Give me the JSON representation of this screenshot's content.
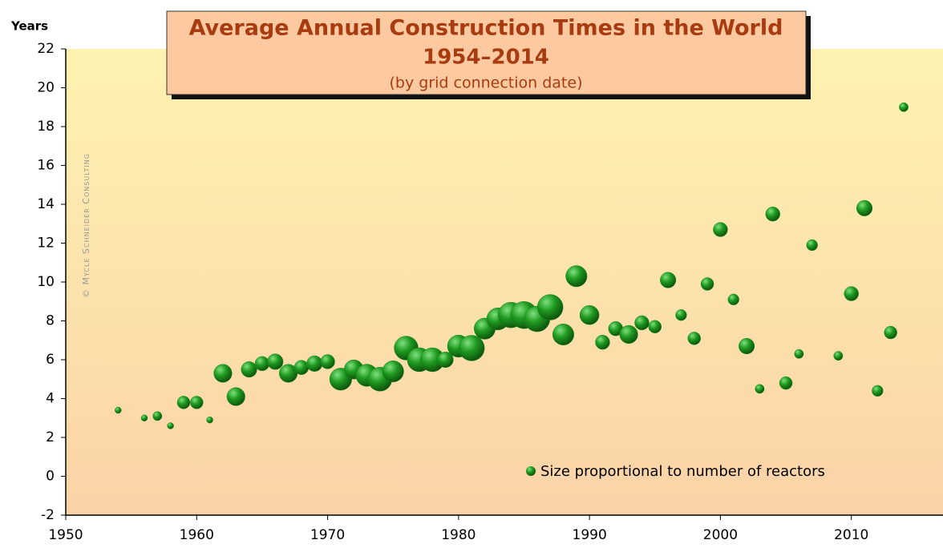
{
  "chart_data": {
    "type": "bubble",
    "title": "Average Annual Construction Times in the World",
    "subtitle": "1954–2014",
    "note": "(by grid connection date)",
    "y_label": "Years",
    "credit": "© Mycle Schneider Consulting",
    "legend": "Size proportional to number of reactors",
    "color": "#1f8a1f",
    "x": [
      1954,
      1956,
      1957,
      1958,
      1959,
      1960,
      1961,
      1962,
      1963,
      1964,
      1965,
      1966,
      1967,
      1968,
      1969,
      1970,
      1971,
      1972,
      1973,
      1974,
      1975,
      1976,
      1977,
      1978,
      1979,
      1980,
      1981,
      1982,
      1983,
      1984,
      1985,
      1986,
      1987,
      1988,
      1989,
      1990,
      1991,
      1992,
      1993,
      1994,
      1995,
      1996,
      1997,
      1998,
      1999,
      2000,
      2001,
      2002,
      2003,
      2004,
      2005,
      2006,
      2007,
      2009,
      2010,
      2011,
      2012,
      2013,
      2014
    ],
    "y": [
      3.4,
      3.0,
      3.1,
      2.6,
      3.8,
      3.8,
      2.9,
      5.3,
      4.1,
      5.5,
      5.8,
      5.9,
      5.3,
      5.6,
      5.8,
      5.9,
      5.0,
      5.5,
      5.2,
      5.0,
      5.4,
      6.6,
      6.0,
      6.0,
      6.0,
      6.7,
      6.6,
      7.6,
      8.1,
      8.3,
      8.3,
      8.1,
      8.7,
      7.3,
      10.3,
      8.3,
      6.9,
      7.6,
      7.3,
      7.9,
      7.7,
      10.1,
      8.3,
      7.1,
      9.9,
      12.7,
      9.1,
      6.7,
      4.5,
      13.5,
      4.8,
      6.3,
      11.9,
      6.2,
      9.4,
      13.8,
      4.4,
      7.4,
      19.0
    ],
    "sizes": [
      1,
      1,
      2,
      1,
      4,
      4,
      1,
      8,
      8,
      6,
      5,
      6,
      8,
      5,
      6,
      5,
      12,
      9,
      12,
      14,
      11,
      14,
      14,
      14,
      6,
      12,
      16,
      11,
      12,
      16,
      18,
      16,
      16,
      11,
      11,
      9,
      5,
      5,
      8,
      5,
      4,
      6,
      3,
      4,
      4,
      5,
      3,
      6,
      2,
      5,
      4,
      2,
      3,
      2,
      5,
      6,
      3,
      4,
      2
    ],
    "xlim": [
      1950,
      2017
    ],
    "xticks": [
      1950,
      1960,
      1970,
      1980,
      1990,
      2000,
      2010
    ],
    "ylim": [
      -2,
      22
    ],
    "yticks": [
      -2,
      0,
      2,
      4,
      6,
      8,
      10,
      12,
      14,
      16,
      18,
      20,
      22
    ]
  }
}
